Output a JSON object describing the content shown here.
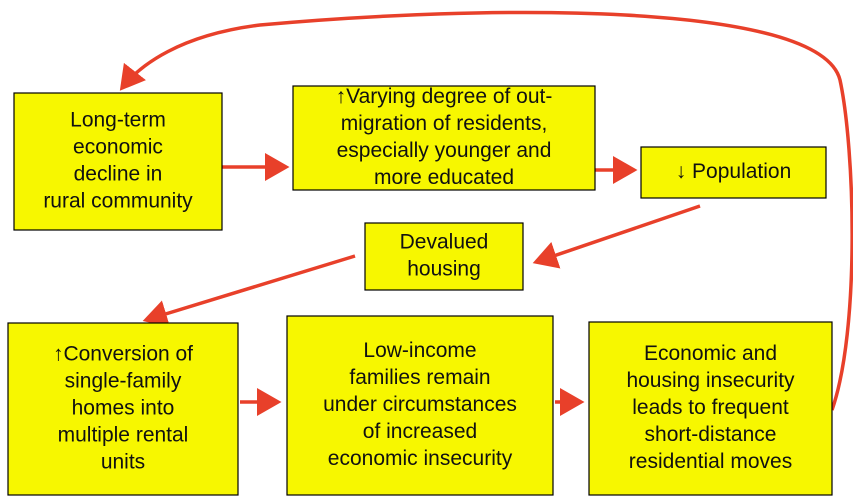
{
  "nodes": [
    {
      "lines": [
        "Long-term",
        "economic",
        "decline in",
        "rural community"
      ]
    },
    {
      "lines": [
        "↑Varying degree of out-",
        "migration of residents,",
        "especially younger and",
        "more educated"
      ]
    },
    {
      "lines": [
        "↓ Population"
      ]
    },
    {
      "lines": [
        "Devalued",
        "housing"
      ]
    },
    {
      "lines": [
        "↑Conversion of",
        "single-family",
        "homes into",
        "multiple rental",
        "units"
      ]
    },
    {
      "lines": [
        "Low-income",
        "families remain",
        "under circumstances",
        "of increased",
        "economic insecurity"
      ]
    },
    {
      "lines": [
        "Economic and",
        "housing insecurity",
        "leads to frequent",
        "short-distance",
        "residential moves"
      ]
    }
  ]
}
